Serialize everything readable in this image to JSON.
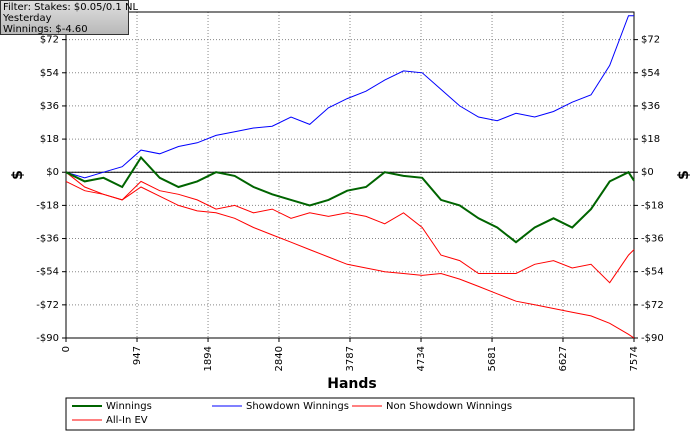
{
  "chart_data": {
    "type": "line",
    "annotations": [
      "Filter: Stakes: $0.05/0.1 NL",
      "Yesterday",
      "Winnings: $-4.60"
    ],
    "xlabel": "Hands",
    "ylabel": "$",
    "x": [
      0,
      250,
      500,
      750,
      1000,
      1250,
      1500,
      1750,
      2000,
      2250,
      2500,
      2750,
      3000,
      3250,
      3500,
      3750,
      4000,
      4250,
      4500,
      4750,
      5000,
      5250,
      5500,
      5750,
      6000,
      6250,
      6500,
      6750,
      7000,
      7250,
      7500,
      7574
    ],
    "series": [
      {
        "name": "Winnings",
        "color": "#006400",
        "values": [
          0,
          -5,
          -3,
          -8,
          8,
          -3,
          -8,
          -5,
          0,
          -2,
          -8,
          -12,
          -15,
          -18,
          -15,
          -10,
          -8,
          0,
          -2,
          -3,
          -15,
          -18,
          -25,
          -30,
          -38,
          -30,
          -25,
          -30,
          -20,
          -5,
          0,
          -4.6
        ]
      },
      {
        "name": "Showdown Winnings",
        "color": "#0000ff",
        "values": [
          0,
          -3,
          0,
          3,
          12,
          10,
          14,
          16,
          20,
          22,
          24,
          25,
          30,
          26,
          35,
          40,
          44,
          50,
          55,
          54,
          45,
          36,
          30,
          28,
          32,
          30,
          33,
          38,
          42,
          58,
          85,
          85
        ]
      },
      {
        "name": "Non Showdown Winnings",
        "color": "#ff0000",
        "values": [
          0,
          -8,
          -12,
          -15,
          -8,
          -13,
          -18,
          -21,
          -22,
          -25,
          -30,
          -34,
          -38,
          -42,
          -46,
          -50,
          -52,
          -54,
          -55,
          -56,
          -55,
          -58,
          -62,
          -66,
          -70,
          -72,
          -74,
          -76,
          -78,
          -82,
          -88,
          -90
        ]
      },
      {
        "name": "All-In EV",
        "color": "#ff0000",
        "values": [
          -5,
          -10,
          -12,
          -15,
          -5,
          -10,
          -12,
          -15,
          -20,
          -18,
          -22,
          -20,
          -25,
          -22,
          -24,
          -22,
          -24,
          -28,
          -22,
          -30,
          -45,
          -48,
          -55,
          -55,
          -55,
          -50,
          -48,
          -52,
          -50,
          -60,
          -45,
          -42
        ]
      }
    ],
    "xlim": [
      0,
      7574
    ],
    "xticks": [
      0,
      947,
      1894,
      2840,
      3787,
      4734,
      5681,
      6627,
      7574
    ],
    "ylim": [
      -90,
      87
    ],
    "yticks": [
      {
        "value": -90,
        "label": "-$90"
      },
      {
        "value": -72,
        "label": "-$72"
      },
      {
        "value": -54,
        "label": "-$54"
      },
      {
        "value": -36,
        "label": "-$36"
      },
      {
        "value": -18,
        "label": "-$18"
      },
      {
        "value": 0,
        "label": "$0"
      },
      {
        "value": 18,
        "label": "$18"
      },
      {
        "value": 36,
        "label": "$36"
      },
      {
        "value": 54,
        "label": "$54"
      },
      {
        "value": 72,
        "label": "$72"
      }
    ],
    "grid": true
  }
}
